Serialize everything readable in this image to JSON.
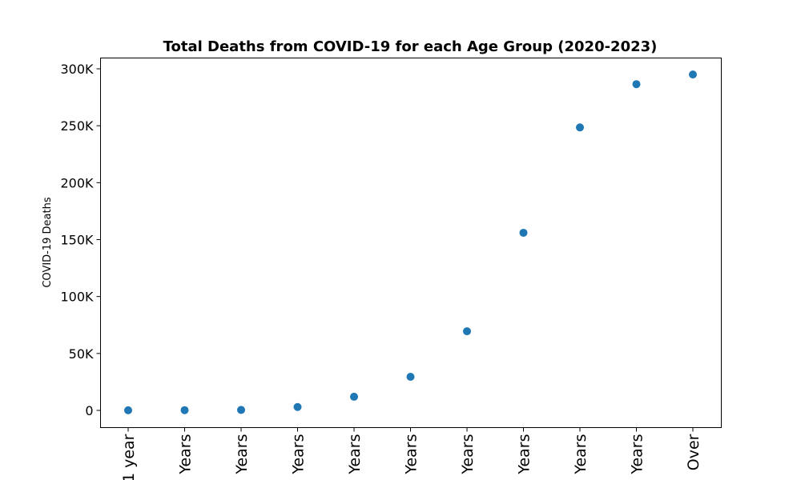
{
  "chart_data": {
    "type": "scatter",
    "title": "Total Deaths from COVID-19 for each Age Group (2020-2023)",
    "xlabel": "",
    "ylabel": "COVID-19 Deaths",
    "categories": [
      "1 year",
      "Years",
      "Years",
      "Years",
      "Years",
      "Years",
      "Years",
      "Years",
      "Years",
      "Years",
      "Over"
    ],
    "values": [
      100,
      200,
      400,
      3000,
      12000,
      29500,
      69500,
      156000,
      248500,
      286500,
      295000
    ],
    "ylim": [
      -15000,
      310000
    ],
    "yticks": [
      0,
      50000,
      100000,
      150000,
      200000,
      250000,
      300000
    ],
    "ytick_labels": [
      "0",
      "50K",
      "100K",
      "150K",
      "200K",
      "250K",
      "300K"
    ],
    "grid": false,
    "marker_color": "#1f77b4"
  }
}
